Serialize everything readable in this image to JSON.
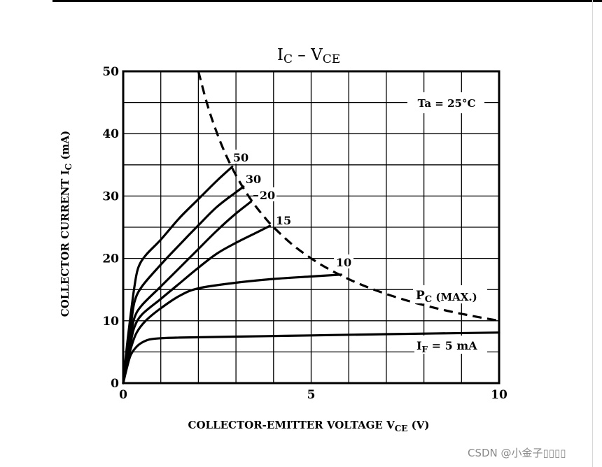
{
  "chart_data": {
    "type": "line",
    "title": {
      "main": "I",
      "sub1": "C",
      "sep": " – ",
      "main2": "V",
      "sub2": "CE"
    },
    "ylabel": {
      "pre": "COLLECTOR CURRENT  I",
      "sub": "C",
      "post": "  (mA)"
    },
    "xlabel": {
      "pre": "COLLECTOR-EMITTER VOLTAGE   V",
      "sub": "CE",
      "post": "  (V)"
    },
    "xlim": [
      0,
      10
    ],
    "ylim": [
      0,
      50
    ],
    "x_tick_labels": [
      {
        "v": 0,
        "t": "0"
      },
      {
        "v": 5,
        "t": "5"
      },
      {
        "v": 10,
        "t": "10"
      }
    ],
    "y_tick_labels": [
      {
        "v": 0,
        "t": "0"
      },
      {
        "v": 10,
        "t": "10"
      },
      {
        "v": 20,
        "t": "20"
      },
      {
        "v": 30,
        "t": "30"
      },
      {
        "v": 40,
        "t": "40"
      },
      {
        "v": 50,
        "t": "50"
      }
    ],
    "grid": true,
    "annotation": "Ta = 25°C",
    "series": [
      {
        "name": "IF = 5 mA",
        "x": [
          0,
          0.1,
          0.2,
          0.35,
          0.5,
          0.7,
          1.0,
          1.5,
          3,
          5,
          7,
          10
        ],
        "y": [
          0,
          2.5,
          4.5,
          5.8,
          6.5,
          7.0,
          7.2,
          7.3,
          7.45,
          7.65,
          7.85,
          8.1
        ]
      },
      {
        "name": "10",
        "x": [
          0,
          0.1,
          0.2,
          0.35,
          0.6,
          1.0,
          1.5,
          2.0,
          3.0,
          4.0,
          5.0,
          5.8
        ],
        "y": [
          0,
          3,
          5.5,
          8,
          10,
          12,
          14,
          15.2,
          16.1,
          16.7,
          17.1,
          17.4
        ]
      },
      {
        "name": "15",
        "x": [
          0,
          0.1,
          0.2,
          0.3,
          0.5,
          1.0,
          1.5,
          2.0,
          2.5,
          3.0,
          3.5,
          3.9
        ],
        "y": [
          0,
          3.5,
          6.5,
          9,
          11,
          13.5,
          16,
          18.5,
          20.8,
          22.5,
          24,
          25.2
        ]
      },
      {
        "name": "20",
        "x": [
          0,
          0.1,
          0.2,
          0.3,
          0.5,
          1.0,
          1.5,
          2.0,
          2.5,
          3.0,
          3.4
        ],
        "y": [
          0,
          4,
          7.5,
          10.5,
          12.5,
          15.5,
          18.5,
          21.5,
          24.5,
          27.2,
          29.1
        ]
      },
      {
        "name": "30",
        "x": [
          0,
          0.1,
          0.2,
          0.3,
          0.5,
          1.0,
          1.5,
          2.0,
          2.5,
          3.0,
          3.2
        ],
        "y": [
          0,
          5,
          9,
          13,
          15.5,
          19,
          22.2,
          25.3,
          28.3,
          30.6,
          31.5
        ]
      },
      {
        "name": "50",
        "x": [
          0,
          0.1,
          0.2,
          0.3,
          0.4,
          0.6,
          1.0,
          1.5,
          2.0,
          2.5,
          2.9
        ],
        "y": [
          0,
          6,
          11,
          15.5,
          18.5,
          20.5,
          23,
          26.5,
          29.5,
          32.5,
          34.7
        ]
      }
    ],
    "pc_max": {
      "name": "PC (MAX.)",
      "label_main": "P",
      "label_sub": "C",
      "label_post": " (MAX.)",
      "x": [
        2.0,
        2.25,
        2.5,
        2.75,
        3.0,
        3.25,
        3.5,
        3.75,
        4.0,
        4.5,
        5.0,
        5.5,
        6.0,
        6.5,
        7.0,
        7.5,
        8.0,
        8.5,
        9.0,
        9.5,
        10.0
      ],
      "y": [
        50.0,
        44.44,
        40.0,
        36.36,
        33.33,
        30.77,
        28.57,
        26.67,
        25.0,
        22.22,
        20.0,
        18.18,
        16.67,
        15.38,
        14.29,
        13.33,
        12.5,
        11.76,
        11.11,
        10.53,
        10.0
      ]
    },
    "curve_labels": [
      {
        "text": "50",
        "leader": false
      },
      {
        "text": "30",
        "leader": false
      },
      {
        "text": "20",
        "leader": true
      },
      {
        "text": "15",
        "leader": false
      },
      {
        "text": "10",
        "leader": false
      },
      {
        "text_main": "I",
        "text_sub": "F",
        "text_post": " = 5 mA"
      }
    ]
  },
  "watermark": "CSDN @小金子▯▯▯▯"
}
